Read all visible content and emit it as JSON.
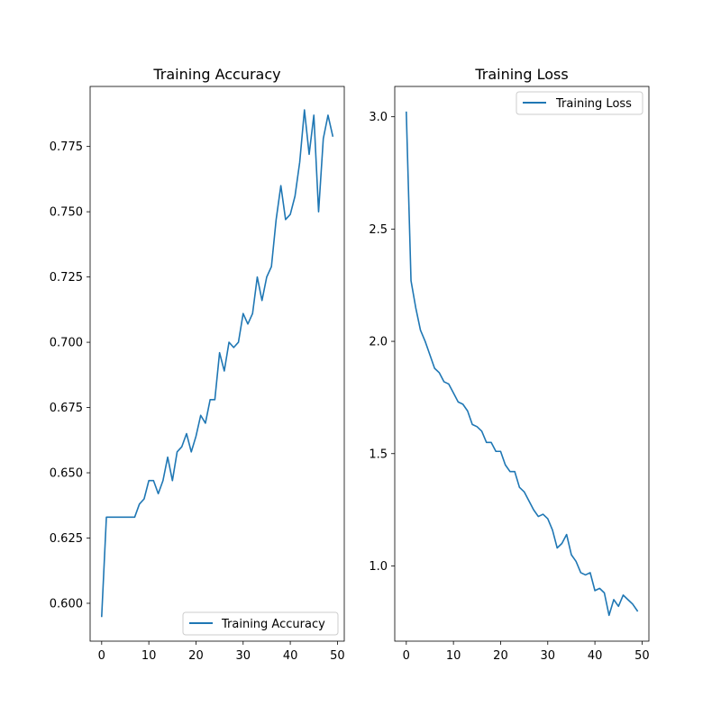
{
  "chart_data": [
    {
      "type": "line",
      "title": "Training Accuracy",
      "xlabel": "",
      "ylabel": "",
      "xlim": [
        -2.45,
        51.45
      ],
      "ylim": [
        0.5855,
        0.798
      ],
      "xticks": [
        0,
        10,
        20,
        30,
        40,
        50
      ],
      "yticks": [
        0.6,
        0.625,
        0.65,
        0.675,
        0.7,
        0.725,
        0.75,
        0.775
      ],
      "xtick_labels": [
        "0",
        "10",
        "20",
        "30",
        "40",
        "50"
      ],
      "ytick_labels": [
        "0.600",
        "0.625",
        "0.650",
        "0.675",
        "0.700",
        "0.725",
        "0.750",
        "0.775"
      ],
      "grid": false,
      "legend_position": "lower-right",
      "color": "#1f77b4",
      "series": [
        {
          "name": "Training Accuracy",
          "x": [
            0,
            1,
            2,
            3,
            4,
            5,
            6,
            7,
            8,
            9,
            10,
            11,
            12,
            13,
            14,
            15,
            16,
            17,
            18,
            19,
            20,
            21,
            22,
            23,
            24,
            25,
            26,
            27,
            28,
            29,
            30,
            31,
            32,
            33,
            34,
            35,
            36,
            37,
            38,
            39,
            40,
            41,
            42,
            43,
            44,
            45,
            46,
            47,
            48,
            49
          ],
          "values": [
            0.595,
            0.633,
            0.633,
            0.633,
            0.633,
            0.633,
            0.633,
            0.633,
            0.638,
            0.64,
            0.647,
            0.647,
            0.642,
            0.647,
            0.656,
            0.647,
            0.658,
            0.66,
            0.665,
            0.658,
            0.664,
            0.672,
            0.669,
            0.678,
            0.678,
            0.696,
            0.689,
            0.7,
            0.698,
            0.7,
            0.711,
            0.707,
            0.711,
            0.725,
            0.716,
            0.725,
            0.729,
            0.747,
            0.76,
            0.747,
            0.749,
            0.756,
            0.769,
            0.789,
            0.772,
            0.787,
            0.75,
            0.778,
            0.787,
            0.779
          ]
        }
      ]
    },
    {
      "type": "line",
      "title": "Training Loss",
      "xlabel": "",
      "ylabel": "",
      "xlim": [
        -2.45,
        51.45
      ],
      "ylim": [
        0.665,
        3.135
      ],
      "xticks": [
        0,
        10,
        20,
        30,
        40,
        50
      ],
      "yticks": [
        1.0,
        1.5,
        2.0,
        2.5,
        3.0
      ],
      "xtick_labels": [
        "0",
        "10",
        "20",
        "30",
        "40",
        "50"
      ],
      "ytick_labels": [
        "1.0",
        "1.5",
        "2.0",
        "2.5",
        "3.0"
      ],
      "grid": false,
      "legend_position": "top-right",
      "color": "#1f77b4",
      "series": [
        {
          "name": "Training Loss",
          "x": [
            0,
            1,
            2,
            3,
            4,
            5,
            6,
            7,
            8,
            9,
            10,
            11,
            12,
            13,
            14,
            15,
            16,
            17,
            18,
            19,
            20,
            21,
            22,
            23,
            24,
            25,
            26,
            27,
            28,
            29,
            30,
            31,
            32,
            33,
            34,
            35,
            36,
            37,
            38,
            39,
            40,
            41,
            42,
            43,
            44,
            45,
            46,
            47,
            48,
            49
          ],
          "values": [
            3.02,
            2.27,
            2.15,
            2.05,
            2.0,
            1.94,
            1.88,
            1.86,
            1.82,
            1.81,
            1.77,
            1.73,
            1.72,
            1.69,
            1.63,
            1.62,
            1.6,
            1.55,
            1.55,
            1.51,
            1.51,
            1.45,
            1.42,
            1.42,
            1.35,
            1.33,
            1.29,
            1.25,
            1.22,
            1.23,
            1.21,
            1.16,
            1.08,
            1.1,
            1.14,
            1.05,
            1.02,
            0.97,
            0.96,
            0.97,
            0.89,
            0.9,
            0.88,
            0.78,
            0.85,
            0.82,
            0.87,
            0.85,
            0.83,
            0.8
          ]
        }
      ]
    }
  ]
}
